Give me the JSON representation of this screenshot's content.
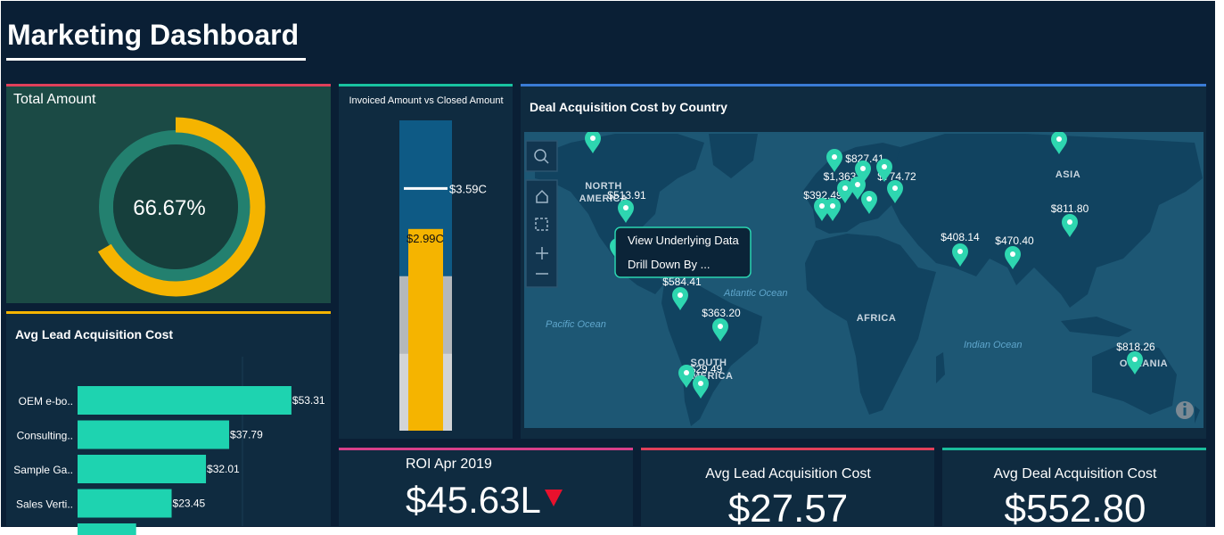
{
  "header": {
    "title": "Marketing Dashboard"
  },
  "total_amount": {
    "title": "Total Amount",
    "percent": 66.67,
    "percent_label": "66.67%"
  },
  "invoiced_vs_closed": {
    "title": "Invoiced Amount vs Closed Amount",
    "invoiced": 3.59,
    "invoiced_label": "$3.59C",
    "closed": 2.99,
    "closed_label": "$2.99C",
    "ranges": [
      1.14,
      2.29,
      4.6
    ]
  },
  "map": {
    "title": "Deal Acquisition Cost by Country",
    "regions": [
      [
        "NORTH",
        "AMERICA"
      ],
      "ASIA",
      "AFRICA",
      [
        "SOUTH",
        "AMERICA"
      ],
      "OCEANIA"
    ],
    "oceans": [
      "Atlantic Ocean",
      "Pacific Ocean",
      "Indian Ocean"
    ],
    "pins": [
      "$513.91",
      "$827.41",
      "$1,363",
      "$774.72",
      "$392.49",
      "$811.80",
      "$408.14",
      "$470.40",
      "$584.41",
      "$363.20",
      "$29.49",
      "$818.26"
    ],
    "menu": [
      "View Underlying Data",
      "Drill Down By ..."
    ]
  },
  "chart_data": {
    "type": "bar",
    "orientation": "horizontal",
    "title": "Avg Lead Acquisition Cost",
    "categories": [
      "OEM e-bo..",
      "Consulting..",
      "Sample Ga..",
      "Sales Verti..",
      null
    ],
    "values": [
      53.31,
      37.79,
      32.01,
      23.45,
      14.6
    ],
    "value_labels": [
      "$53.31",
      "$37.79",
      "$32.01",
      "$23.45",
      null
    ],
    "color": "#1ed3b0",
    "xlim": [
      0,
      62
    ]
  },
  "kpis": [
    {
      "title": "ROI Apr 2019",
      "value": "$45.63L",
      "trend": "down"
    },
    {
      "title": "Avg Lead Acquisition Cost",
      "value": "$27.57"
    },
    {
      "title": "Avg Deal Acquisition Cost",
      "value": "$552.80"
    }
  ]
}
